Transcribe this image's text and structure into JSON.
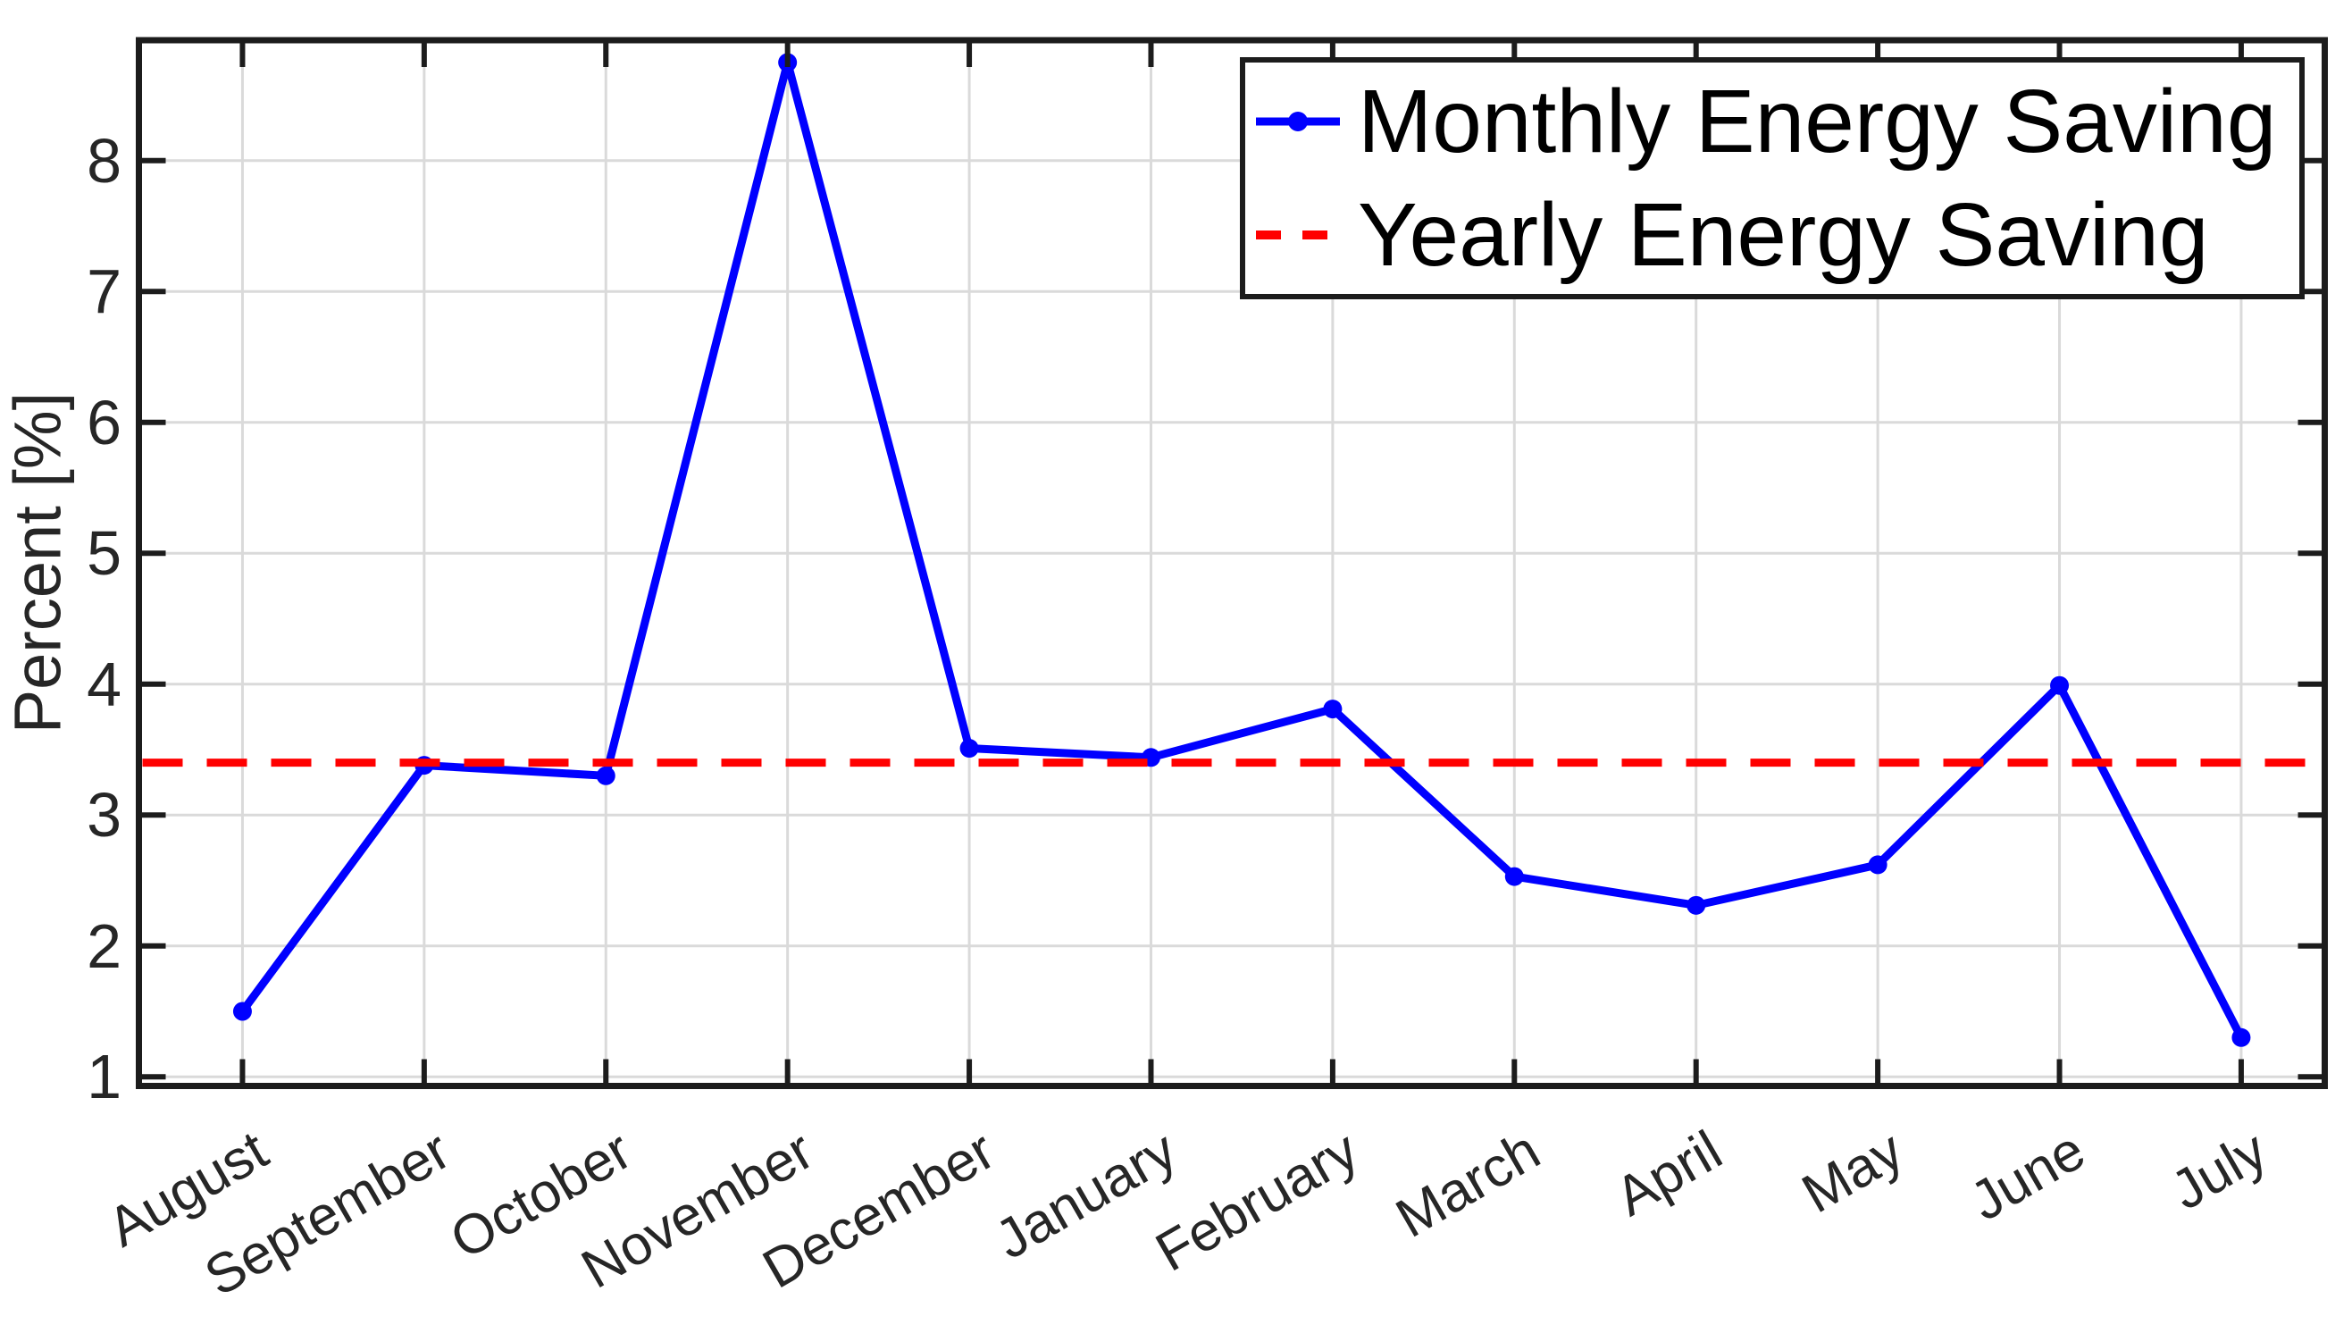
{
  "chart_data": {
    "type": "line",
    "title": "",
    "xlabel": "",
    "ylabel": "Percent [%]",
    "categories": [
      "August",
      "September",
      "October",
      "November",
      "December",
      "January",
      "February",
      "March",
      "April",
      "May",
      "June",
      "July"
    ],
    "series": [
      {
        "name": "Monthly Energy Saving",
        "type": "line-with-markers",
        "color": "#0000ff",
        "values": [
          1.5,
          3.38,
          3.3,
          8.75,
          3.51,
          3.44,
          3.81,
          2.53,
          2.31,
          2.62,
          3.99,
          1.3
        ]
      },
      {
        "name": "Yearly Energy Saving",
        "type": "dashed-horizontal-line",
        "color": "#ff0000",
        "value": 3.4
      }
    ],
    "yticks": [
      1,
      2,
      3,
      4,
      5,
      6,
      7,
      8
    ],
    "ylim": [
      0.93,
      8.92
    ],
    "xlim": [
      0.43,
      12.46
    ],
    "grid": true,
    "legend_position": "top-right",
    "colors": {
      "grid": "#dadada",
      "axis": "#1c1c1c",
      "tick_text": "#262626",
      "legend_text": "#000000",
      "background": "#ffffff"
    }
  }
}
